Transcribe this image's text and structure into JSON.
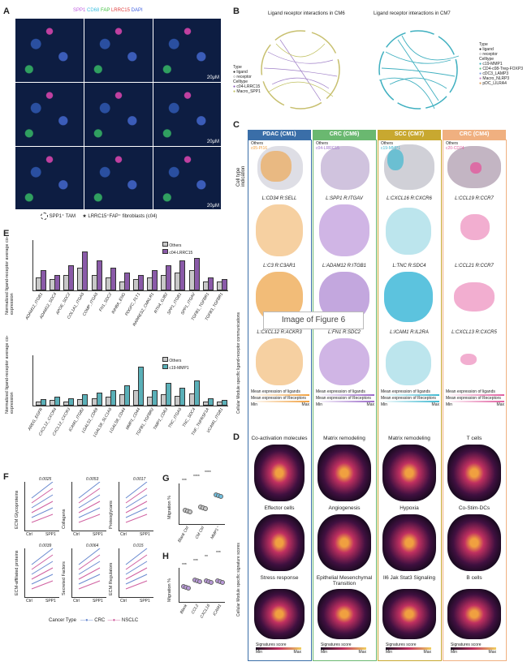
{
  "panel_letters": {
    "A": "A",
    "B": "B",
    "C": "C",
    "D": "D",
    "E": "E",
    "F": "F",
    "G": "G",
    "H": "H"
  },
  "panelA": {
    "legend_markers": [
      "SPP1",
      "CD68",
      "FAP",
      "LRRC15",
      "DAPI"
    ],
    "marker_colors": [
      "#c060e0",
      "#40c0e0",
      "#40c040",
      "#e04040",
      "#4060e0"
    ],
    "scalebar": "20μM",
    "legend_spp1": "SPP1⁺ TAM",
    "legend_lrrc15": "LRRC15⁺FAP⁺ fibroblasts (c04)"
  },
  "panelB": {
    "title_cm6": "Ligand receptor interactions in CM6",
    "title_cm7": "Ligand receptor interactions in CM7",
    "legend_cm6": {
      "type_title": "Type",
      "ligand": "ligand",
      "receptor": "receptor",
      "celltype_title": "Celltype",
      "cells": [
        "c04-LRRC15",
        "Macro_SPP1"
      ],
      "colors": [
        "#8a5ab8",
        "#c0c060"
      ]
    },
    "legend_cm7": {
      "type_title": "Type",
      "ligand": "ligand",
      "receptor": "receptor",
      "celltype_title": "Celltype",
      "cells": [
        "c19-MMP1",
        "CD4-c08-Treg-FOXP3",
        "cDC3_LAMP3",
        "Macro_NLRP3",
        "pDC_LILRA4"
      ],
      "colors": [
        "#40b0c0",
        "#60c080",
        "#80a0e0",
        "#c080c0",
        "#e0a060"
      ]
    }
  },
  "panelC": {
    "row_label_top": "Cell type indication",
    "row_label_side": "Cellular Module specific ligand-receptor communications",
    "columns": [
      {
        "title": "PDAC (CM1)",
        "color": "#3a6ea8",
        "others": "Others",
        "cell": "c05-PI16",
        "cellcolor": "#f0a040"
      },
      {
        "title": "CRC (CM6)",
        "color": "#6ab870",
        "others": "Others",
        "cell": "c04-LRRC15",
        "cellcolor": "#9a6ac8"
      },
      {
        "title": "SCC (CM7)",
        "color": "#c8a830",
        "others": "Others",
        "cell": "c19-MMP1",
        "cellcolor": "#40b8d0"
      },
      {
        "title": "CRC (CM4)",
        "color": "#f0b080",
        "others": "Others",
        "cell": "c20-CD74",
        "cellcolor": "#e060a0"
      }
    ],
    "pairs": [
      [
        "L:CD34 R:SELL",
        "L:SPP1 R:ITGAV",
        "L:CXCL16 R:CXCR6",
        "L:CCL19 R:CCR7"
      ],
      [
        "L:C3 R:C3AR1",
        "L:ADAM12 R:ITGB1",
        "L:TNC R:SDC4",
        "L:CCL21 R:CCR7"
      ],
      [
        "L:CXCL12 R:ACKR3",
        "L:FN1 R:SDC2",
        "L:ICAM1 R:IL2RA",
        "L:CXCL13 R:CXCR5"
      ]
    ],
    "legend_lig": "Mean expression of ligands",
    "legend_rec": "Mean expression of Receptors",
    "min": "Min",
    "max": "Max"
  },
  "overlay_text": "Image of Figure 6",
  "panelD": {
    "side_label": "Cellular Module specific signature scores",
    "titles": [
      [
        "Co-activation molecules",
        "Matrix remodeling",
        "Matrix remodeling",
        "T cells"
      ],
      [
        "Effector cells",
        "Angiogenesis",
        "Hypoxia",
        "Co-Stim-DCs"
      ],
      [
        "Stress response",
        "Epithelial Mesenchymal Transition",
        "Il6 Jak Stat3 Signaling",
        "B cells"
      ]
    ],
    "legend": "Signatures score",
    "min": "Min",
    "max": "Max"
  },
  "panelE": {
    "ylabel": "Normalized ligand-receptor average co-expression",
    "top": {
      "legend": [
        "Others",
        "c04-LRRC15"
      ],
      "colors": [
        "#c8c8c8",
        "#8a5aa8"
      ],
      "categories": [
        "ADAM12_ITGB1",
        "ADAM12_SDC4",
        "APOE_SDC2",
        "COL1A1_ITGA5",
        "COMP_ITGA5",
        "FN1_SDC2",
        "INHBA_ENG",
        "PDGFC_FLT1",
        "RARRES2_CMKLR1",
        "RTN4_GJB2",
        "SPP1_ITGB1",
        "SPP1_ITGAV",
        "TGFB1_TGFBR1",
        "TGFB3_TGFBR1"
      ],
      "others": [
        0.5,
        0.4,
        0.6,
        0.9,
        0.6,
        0.5,
        0.3,
        0.4,
        0.5,
        0.6,
        0.7,
        0.8,
        0.3,
        0.3
      ],
      "target": [
        0.8,
        0.6,
        1.0,
        1.6,
        1.2,
        0.9,
        0.7,
        0.6,
        0.8,
        1.0,
        1.2,
        1.3,
        0.5,
        0.4
      ]
    },
    "bottom": {
      "legend": [
        "Others",
        "c19-MMP1"
      ],
      "colors": [
        "#c8c8c8",
        "#5ab0b8"
      ],
      "categories": [
        "AREG_EGFR",
        "CXCL12_CXCR4",
        "CXCL12_CXCR3",
        "ICAM1_ITGB2",
        "LGALS1_CD69",
        "LGALS9_SLC1A5",
        "LGALS9_CD44",
        "MMP1_CD44",
        "TGFB1_TGFBR2",
        "TIMP1_CD63",
        "TNC_ITGA5",
        "TNC_SDC4",
        "TNF_TNFRSF1A",
        "VCAM1_ITGB1"
      ],
      "others": [
        0.05,
        0.08,
        0.06,
        0.1,
        0.12,
        0.15,
        0.2,
        0.3,
        0.15,
        0.2,
        0.18,
        0.22,
        0.06,
        0.05
      ],
      "target": [
        0.1,
        0.15,
        0.12,
        0.2,
        0.25,
        0.3,
        0.4,
        0.8,
        0.3,
        0.45,
        0.35,
        0.5,
        0.12,
        0.08
      ]
    }
  },
  "panelF": {
    "plots": [
      {
        "ylabel": "ECM Glycoproteins",
        "p": "0.0025"
      },
      {
        "ylabel": "Collagens",
        "p": "0.0053"
      },
      {
        "ylabel": "Proteoglycans",
        "p": "0.0017"
      },
      {
        "ylabel": "ECM-affiliated proteins",
        "p": "0.0039"
      },
      {
        "ylabel": "Secreted Factors",
        "p": "0.0064"
      },
      {
        "ylabel": "ECM Regulators",
        "p": "0.015"
      }
    ],
    "xticks": [
      "Ctrl",
      "SPP1"
    ],
    "legend_title": "Cancer Type",
    "legend": [
      "CRC",
      "NSCLC"
    ],
    "colors": [
      "#6a8ad0",
      "#d060a0"
    ]
  },
  "panelG": {
    "ylabel": "Migration %",
    "categories": [
      "Blank Ctrl",
      "CM Ctrl",
      "MMP1⁺"
    ],
    "values": [
      40,
      45,
      63
    ],
    "sig": [
      "***",
      "****",
      "****"
    ]
  },
  "panelH": {
    "ylabel": "Migration %",
    "categories": [
      "Blank",
      "CCL2",
      "CXCL16",
      "ICAM1"
    ],
    "values": [
      38,
      46,
      45,
      45
    ],
    "sig": [
      "***",
      "***",
      "**",
      "***"
    ]
  }
}
